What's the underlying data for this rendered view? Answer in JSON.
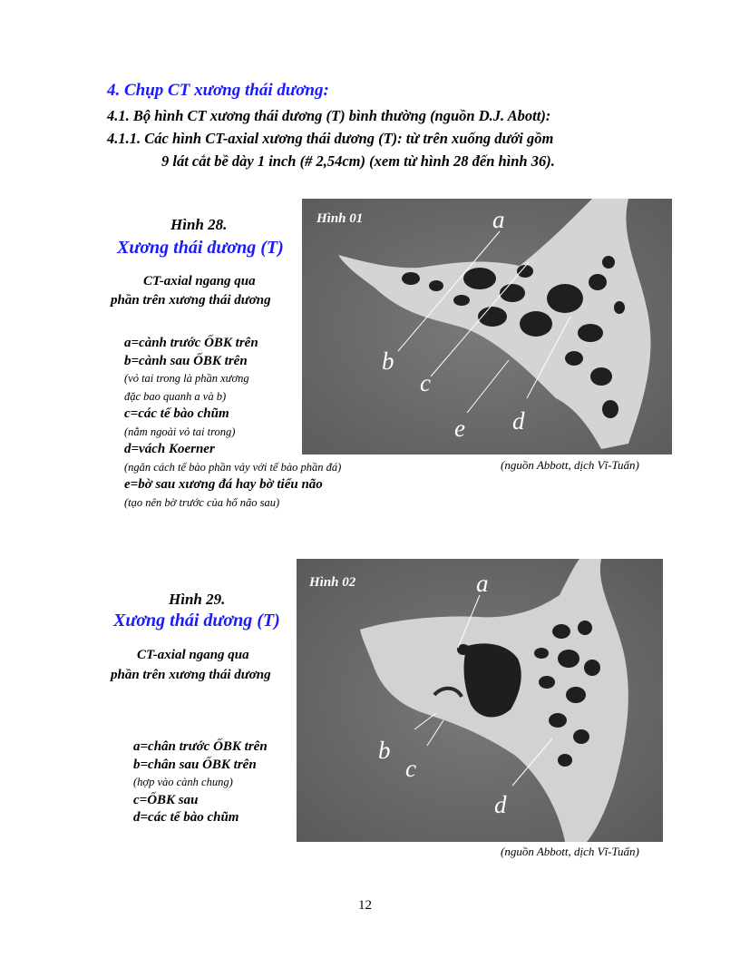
{
  "section": {
    "heading": "4. Chụp CT xương thái dương:",
    "subheading": "4.1. Bộ hình CT xương thái dương (T) bình thường (nguồn D.J. Abott):",
    "subsub_line1": "4.1.1. Các hình CT-axial  xương thái dương (T): từ trên xuống dưới gồm",
    "subsub_line2": "9 lát cắt bề dày 1 inch (# 2,54cm) (xem từ hình 28 đến hình 36)."
  },
  "figure1": {
    "label": "Hình 28.",
    "title": "Xương thái dương (T)",
    "subtitle_line1": "CT-axial ngang qua",
    "subtitle_line2": "phần trên xương thái dương",
    "legend": [
      "a=cành trước ỐBK trên",
      "b=cành sau ỐBK trên",
      "(vỏ tai trong là phần xương",
      "đặc bao quanh a và b)",
      "c=các tế bào chũm",
      "(nằm ngoài vỏ tai trong)",
      "d=vách Koerner",
      "(ngăn cách tế bào phần vảy với tế bào phần đá)",
      "e=bờ sau xương đá hay bờ tiểu não",
      "(tạo nên bờ trước của hố não sau)"
    ],
    "image_title": "Hình 01",
    "letters": [
      "a",
      "b",
      "c",
      "d",
      "e"
    ],
    "source": "(nguồn Abbott, dịch Vĩ-Tuấn)"
  },
  "figure2": {
    "label": "Hình 29.",
    "title": "Xương thái dương (T)",
    "subtitle_line1": "CT-axial ngang qua",
    "subtitle_line2": "phần trên xương thái dương",
    "legend": [
      "a=chân trước ỐBK trên",
      "b=chân sau ỐBK trên",
      "(hợp vào cành chung)",
      "c=ỐBK sau",
      "d=các tế bào chũm"
    ],
    "image_title": "Hình 02",
    "letters": [
      "a",
      "b",
      "c",
      "d"
    ],
    "source": "(nguồn Abbott, dịch Vĩ-Tuấn)"
  },
  "page_number": "12"
}
